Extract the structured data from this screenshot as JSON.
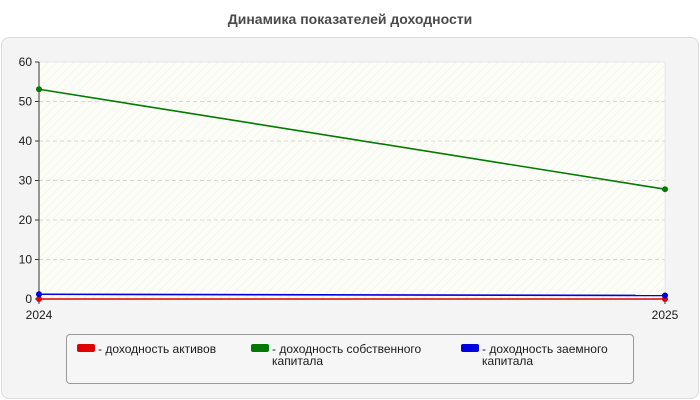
{
  "chart_data": {
    "type": "line",
    "title": "Динамика показателей доходности",
    "x": [
      "2024",
      "2025"
    ],
    "ylim": [
      0,
      60
    ],
    "yticks": [
      0,
      10,
      20,
      30,
      40,
      50,
      60
    ],
    "grid": true,
    "legend_position": "bottom",
    "series": [
      {
        "name": "доходность активов",
        "color": "#e00000",
        "values": [
          0,
          0
        ]
      },
      {
        "name": "доходность собственного капитала",
        "color": "#007a00",
        "values": [
          53.1,
          27.8
        ]
      },
      {
        "name": "доходность заемного капитала",
        "color": "#0000e0",
        "values": [
          1.2,
          0.9
        ]
      }
    ]
  },
  "legend": {
    "prefix": "- "
  }
}
